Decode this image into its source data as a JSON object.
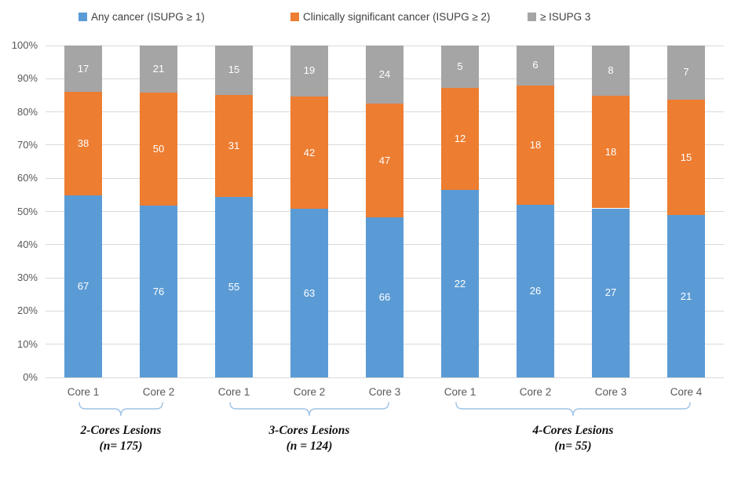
{
  "legend": [
    {
      "label": "Any cancer (ISUPG ≥ 1)",
      "color": "#5B9BD5"
    },
    {
      "label": "Clinically significant cancer (ISUPG ≥ 2)",
      "color": "#ED7D31"
    },
    {
      "label": "≥ ISUPG 3",
      "color": "#A5A5A5"
    }
  ],
  "chart_data": {
    "type": "bar",
    "subtype": "stacked-100-percent",
    "orientation": "vertical",
    "categories": [
      "Core 1",
      "Core 2",
      "Core 1",
      "Core 2",
      "Core 3",
      "Core 1",
      "Core 2",
      "Core 3",
      "Core 4"
    ],
    "series": [
      {
        "name": "Any cancer (ISUPG ≥ 1)",
        "color": "#5B9BD5",
        "values": [
          67,
          76,
          55,
          63,
          66,
          22,
          26,
          27,
          21
        ]
      },
      {
        "name": "Clinically significant cancer (ISUPG ≥ 2)",
        "color": "#ED7D31",
        "values": [
          38,
          50,
          31,
          42,
          47,
          12,
          18,
          18,
          15
        ]
      },
      {
        "name": "≥ ISUPG 3",
        "color": "#A5A5A5",
        "values": [
          17,
          21,
          15,
          19,
          24,
          5,
          6,
          8,
          7
        ]
      }
    ],
    "groups": [
      {
        "label": "2-Cores Lesions",
        "n_label": "(n= 175)",
        "bars": [
          0,
          1
        ]
      },
      {
        "label": "3-Cores Lesions",
        "n_label": "(n = 124)",
        "bars": [
          2,
          3,
          4
        ]
      },
      {
        "label": "4-Cores Lesions",
        "n_label": "(n= 55)",
        "bars": [
          5,
          6,
          7,
          8
        ]
      }
    ],
    "y_axis": {
      "ticks": [
        "0%",
        "10%",
        "20%",
        "30%",
        "40%",
        "50%",
        "60%",
        "70%",
        "80%",
        "90%",
        "100%"
      ],
      "min": 0,
      "max": 100,
      "unit": "percent"
    },
    "grid": true,
    "legend_position": "top",
    "bar_value_labels_shown": true,
    "colors": {
      "gridline": "#D9D9D9",
      "axis_text": "#595959",
      "legend_text": "#404040",
      "brace": "#9DC3E6",
      "value_label_text": "#FFFFFF",
      "group_label_text": "#111111"
    }
  }
}
